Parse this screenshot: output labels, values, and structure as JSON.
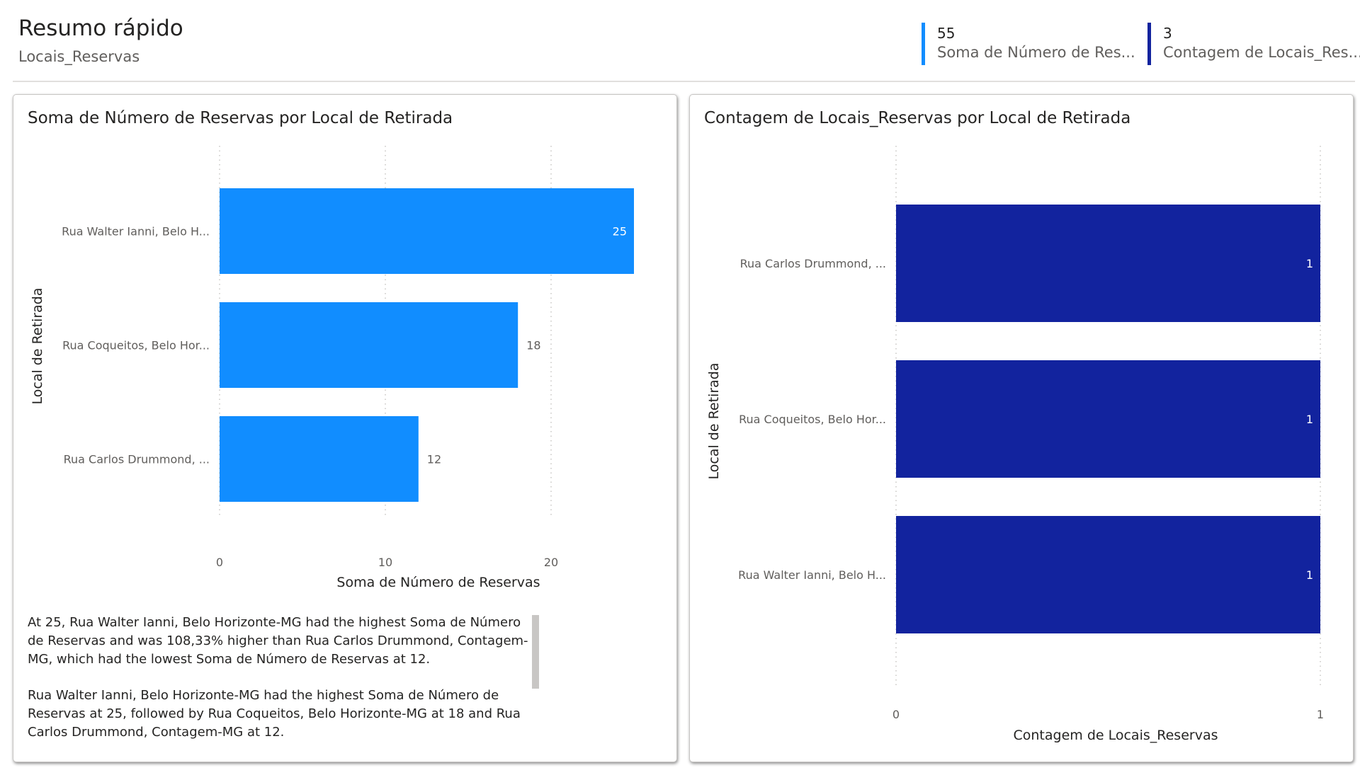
{
  "header": {
    "title": "Resumo rápido",
    "subtitle": "Locais_Reservas",
    "kpis": [
      {
        "value": "55",
        "label": "Soma de Número de Res...",
        "color": "#118dff"
      },
      {
        "value": "3",
        "label": "Contagem de Locais_Res...",
        "color": "#12239e"
      }
    ]
  },
  "chart_data": [
    {
      "type": "bar",
      "orientation": "horizontal",
      "title": "Soma de Número de Reservas por Local de Retirada",
      "xlabel": "Soma de Número de Reservas",
      "ylabel": "Local de Retirada",
      "categories": [
        "Rua Walter Ianni, Belo H...",
        "Rua Coqueitos, Belo Hor...",
        "Rua Carlos Drummond, ..."
      ],
      "values": [
        25,
        18,
        12
      ],
      "xlim": [
        0,
        25
      ],
      "xticks": [
        0,
        10,
        20
      ],
      "gridlines": "vertical dotted",
      "color": "#118dff"
    },
    {
      "type": "bar",
      "orientation": "horizontal",
      "title": "Contagem de Locais_Reservas por Local de Retirada",
      "xlabel": "Contagem de Locais_Reservas",
      "ylabel": "Local de Retirada",
      "categories": [
        "Rua Carlos Drummond, ...",
        "Rua Coqueitos, Belo Hor...",
        "Rua Walter Ianni, Belo H..."
      ],
      "values": [
        1,
        1,
        1
      ],
      "xlim": [
        0,
        1
      ],
      "xticks": [
        0,
        1
      ],
      "gridlines": "vertical dotted",
      "color": "#12239e"
    }
  ],
  "narrative": {
    "paragraphs": [
      "At 25, Rua Walter Ianni, Belo Horizonte-MG had the highest Soma de Número de Reservas and was 108,33% higher than Rua Carlos Drummond, Contagem-MG, which had the lowest Soma de Número de Reservas at 12.",
      "Rua Walter Ianni, Belo Horizonte-MG had the highest Soma de Número de Reservas at 25, followed by Rua Coqueitos, Belo Horizonte-MG at 18 and Rua Carlos Drummond, Contagem-MG at 12."
    ]
  }
}
